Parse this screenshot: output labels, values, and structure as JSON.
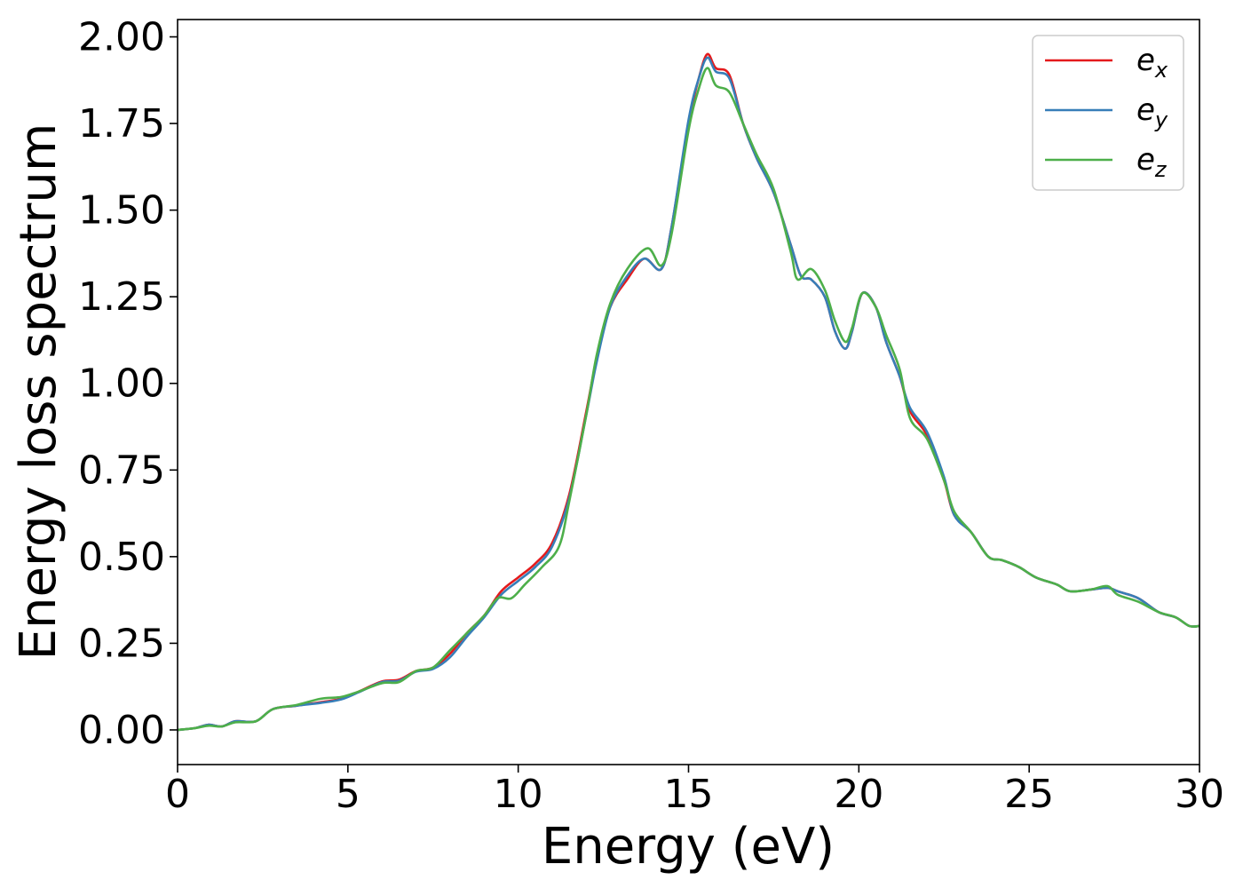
{
  "chart_data": {
    "type": "line",
    "title": "",
    "xlabel": "Energy (eV)",
    "ylabel": "Energy loss spectrum",
    "xlim": [
      0,
      30
    ],
    "ylim": [
      -0.1,
      2.05
    ],
    "xticks": [
      0,
      5,
      10,
      15,
      20,
      25,
      30
    ],
    "yticks": [
      0.0,
      0.25,
      0.5,
      0.75,
      1.0,
      1.25,
      1.5,
      1.75,
      2.0
    ],
    "xtick_labels": [
      "0",
      "5",
      "10",
      "15",
      "20",
      "25",
      "30"
    ],
    "ytick_labels": [
      "0.00",
      "0.25",
      "0.50",
      "0.75",
      "1.00",
      "1.25",
      "1.50",
      "1.75",
      "2.00"
    ],
    "grid": false,
    "legend_position": "top-right",
    "series": [
      {
        "name": "e_x",
        "label_main": "e",
        "label_sub": "x",
        "color": "#e41a1c",
        "points": [
          [
            0,
            0
          ],
          [
            0.5,
            0.005
          ],
          [
            0.9,
            0.015
          ],
          [
            1.3,
            0.01
          ],
          [
            1.7,
            0.025
          ],
          [
            2.3,
            0.025
          ],
          [
            2.8,
            0.06
          ],
          [
            3.5,
            0.07
          ],
          [
            4.2,
            0.08
          ],
          [
            4.8,
            0.09
          ],
          [
            5.3,
            0.11
          ],
          [
            6.0,
            0.14
          ],
          [
            6.5,
            0.145
          ],
          [
            7.0,
            0.17
          ],
          [
            7.5,
            0.18
          ],
          [
            8.0,
            0.22
          ],
          [
            8.5,
            0.28
          ],
          [
            9.0,
            0.33
          ],
          [
            9.5,
            0.4
          ],
          [
            10.0,
            0.44
          ],
          [
            10.5,
            0.48
          ],
          [
            11.0,
            0.54
          ],
          [
            11.5,
            0.68
          ],
          [
            12.0,
            0.92
          ],
          [
            12.3,
            1.07
          ],
          [
            12.7,
            1.22
          ],
          [
            13.2,
            1.3
          ],
          [
            13.7,
            1.36
          ],
          [
            14.2,
            1.33
          ],
          [
            14.5,
            1.45
          ],
          [
            15.0,
            1.75
          ],
          [
            15.3,
            1.88
          ],
          [
            15.55,
            1.95
          ],
          [
            15.8,
            1.91
          ],
          [
            16.2,
            1.89
          ],
          [
            16.6,
            1.75
          ],
          [
            17.0,
            1.65
          ],
          [
            17.5,
            1.55
          ],
          [
            18.0,
            1.4
          ],
          [
            18.3,
            1.31
          ],
          [
            18.6,
            1.3
          ],
          [
            19.0,
            1.25
          ],
          [
            19.3,
            1.15
          ],
          [
            19.6,
            1.1
          ],
          [
            19.8,
            1.15
          ],
          [
            20.1,
            1.26
          ],
          [
            20.5,
            1.22
          ],
          [
            20.8,
            1.12
          ],
          [
            21.2,
            1.02
          ],
          [
            21.5,
            0.92
          ],
          [
            22.0,
            0.85
          ],
          [
            22.5,
            0.72
          ],
          [
            22.8,
            0.62
          ],
          [
            23.3,
            0.57
          ],
          [
            23.8,
            0.5
          ],
          [
            24.2,
            0.49
          ],
          [
            24.7,
            0.47
          ],
          [
            25.2,
            0.44
          ],
          [
            25.8,
            0.42
          ],
          [
            26.2,
            0.4
          ],
          [
            26.8,
            0.405
          ],
          [
            27.3,
            0.41
          ],
          [
            27.6,
            0.4
          ],
          [
            28.2,
            0.38
          ],
          [
            28.8,
            0.34
          ],
          [
            29.3,
            0.325
          ],
          [
            29.7,
            0.3
          ],
          [
            30,
            0.3
          ]
        ]
      },
      {
        "name": "e_y",
        "label_main": "e",
        "label_sub": "y",
        "color": "#377eb8",
        "points": [
          [
            0,
            0
          ],
          [
            0.5,
            0.005
          ],
          [
            0.9,
            0.015
          ],
          [
            1.3,
            0.01
          ],
          [
            1.7,
            0.025
          ],
          [
            2.3,
            0.025
          ],
          [
            2.8,
            0.06
          ],
          [
            3.5,
            0.07
          ],
          [
            4.2,
            0.078
          ],
          [
            4.8,
            0.088
          ],
          [
            5.3,
            0.108
          ],
          [
            6.0,
            0.138
          ],
          [
            6.5,
            0.142
          ],
          [
            7.0,
            0.168
          ],
          [
            7.5,
            0.176
          ],
          [
            8.0,
            0.21
          ],
          [
            8.5,
            0.27
          ],
          [
            9.0,
            0.325
          ],
          [
            9.5,
            0.39
          ],
          [
            10.0,
            0.43
          ],
          [
            10.5,
            0.47
          ],
          [
            11.0,
            0.53
          ],
          [
            11.5,
            0.67
          ],
          [
            12.0,
            0.91
          ],
          [
            12.3,
            1.06
          ],
          [
            12.7,
            1.22
          ],
          [
            13.2,
            1.31
          ],
          [
            13.7,
            1.36
          ],
          [
            14.2,
            1.33
          ],
          [
            14.5,
            1.45
          ],
          [
            15.0,
            1.76
          ],
          [
            15.3,
            1.88
          ],
          [
            15.55,
            1.94
          ],
          [
            15.8,
            1.9
          ],
          [
            16.2,
            1.88
          ],
          [
            16.6,
            1.75
          ],
          [
            17.0,
            1.65
          ],
          [
            17.5,
            1.55
          ],
          [
            18.0,
            1.4
          ],
          [
            18.3,
            1.31
          ],
          [
            18.6,
            1.3
          ],
          [
            19.0,
            1.25
          ],
          [
            19.3,
            1.15
          ],
          [
            19.6,
            1.1
          ],
          [
            19.8,
            1.15
          ],
          [
            20.1,
            1.26
          ],
          [
            20.5,
            1.22
          ],
          [
            20.8,
            1.12
          ],
          [
            21.2,
            1.02
          ],
          [
            21.5,
            0.93
          ],
          [
            22.0,
            0.86
          ],
          [
            22.5,
            0.73
          ],
          [
            22.8,
            0.62
          ],
          [
            23.3,
            0.57
          ],
          [
            23.8,
            0.5
          ],
          [
            24.2,
            0.49
          ],
          [
            24.7,
            0.47
          ],
          [
            25.2,
            0.44
          ],
          [
            25.8,
            0.42
          ],
          [
            26.2,
            0.4
          ],
          [
            26.8,
            0.405
          ],
          [
            27.3,
            0.41
          ],
          [
            27.6,
            0.4
          ],
          [
            28.2,
            0.38
          ],
          [
            28.8,
            0.34
          ],
          [
            29.3,
            0.325
          ],
          [
            29.7,
            0.3
          ],
          [
            30,
            0.3
          ]
        ]
      },
      {
        "name": "e_z",
        "label_main": "e",
        "label_sub": "z",
        "color": "#4daf4a",
        "points": [
          [
            0,
            0
          ],
          [
            0.5,
            0.005
          ],
          [
            0.9,
            0.012
          ],
          [
            1.3,
            0.01
          ],
          [
            1.7,
            0.022
          ],
          [
            2.3,
            0.025
          ],
          [
            2.8,
            0.06
          ],
          [
            3.5,
            0.072
          ],
          [
            4.2,
            0.09
          ],
          [
            4.8,
            0.095
          ],
          [
            5.3,
            0.11
          ],
          [
            6.0,
            0.135
          ],
          [
            6.5,
            0.138
          ],
          [
            7.0,
            0.17
          ],
          [
            7.5,
            0.18
          ],
          [
            8.0,
            0.23
          ],
          [
            8.5,
            0.28
          ],
          [
            9.0,
            0.33
          ],
          [
            9.4,
            0.38
          ],
          [
            9.8,
            0.38
          ],
          [
            10.2,
            0.42
          ],
          [
            10.7,
            0.47
          ],
          [
            11.2,
            0.53
          ],
          [
            11.5,
            0.66
          ],
          [
            12.0,
            0.91
          ],
          [
            12.3,
            1.08
          ],
          [
            12.7,
            1.23
          ],
          [
            13.2,
            1.33
          ],
          [
            13.8,
            1.39
          ],
          [
            14.2,
            1.34
          ],
          [
            14.5,
            1.43
          ],
          [
            15.0,
            1.73
          ],
          [
            15.3,
            1.85
          ],
          [
            15.55,
            1.91
          ],
          [
            15.8,
            1.86
          ],
          [
            16.2,
            1.84
          ],
          [
            16.6,
            1.75
          ],
          [
            17.0,
            1.66
          ],
          [
            17.5,
            1.56
          ],
          [
            18.0,
            1.38
          ],
          [
            18.2,
            1.3
          ],
          [
            18.6,
            1.33
          ],
          [
            19.0,
            1.27
          ],
          [
            19.3,
            1.18
          ],
          [
            19.6,
            1.12
          ],
          [
            19.8,
            1.16
          ],
          [
            20.1,
            1.26
          ],
          [
            20.5,
            1.22
          ],
          [
            20.8,
            1.14
          ],
          [
            21.2,
            1.04
          ],
          [
            21.5,
            0.9
          ],
          [
            22.0,
            0.84
          ],
          [
            22.5,
            0.72
          ],
          [
            22.8,
            0.63
          ],
          [
            23.3,
            0.57
          ],
          [
            23.8,
            0.5
          ],
          [
            24.2,
            0.49
          ],
          [
            24.7,
            0.47
          ],
          [
            25.2,
            0.44
          ],
          [
            25.8,
            0.42
          ],
          [
            26.2,
            0.4
          ],
          [
            26.8,
            0.405
          ],
          [
            27.3,
            0.415
          ],
          [
            27.6,
            0.39
          ],
          [
            28.2,
            0.37
          ],
          [
            28.8,
            0.34
          ],
          [
            29.3,
            0.325
          ],
          [
            29.7,
            0.3
          ],
          [
            30,
            0.3
          ]
        ]
      }
    ]
  }
}
